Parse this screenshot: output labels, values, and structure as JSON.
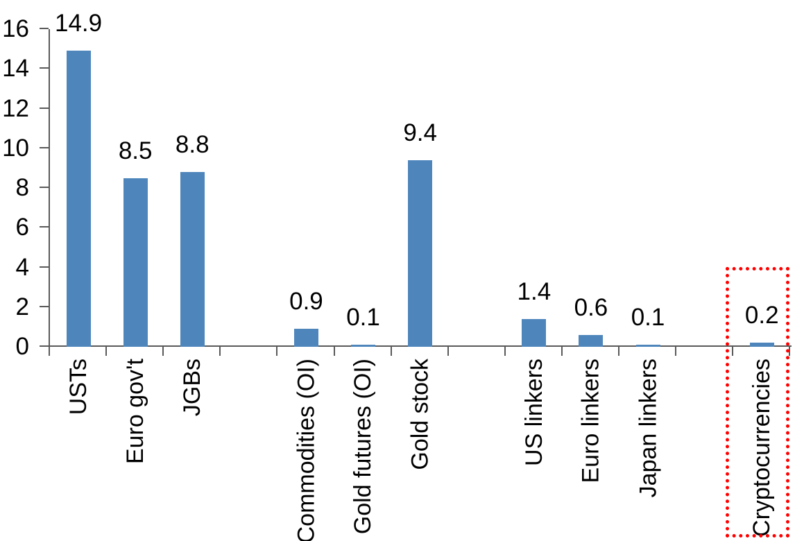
{
  "chart_data": {
    "type": "bar",
    "title": "",
    "xlabel": "",
    "ylabel": "",
    "categories": [
      "USTs",
      "Euro gov't",
      "JGBs",
      "",
      "Commodities (OI)",
      "Gold futures (OI)",
      "Gold stock",
      "",
      "US linkers",
      "Euro linkers",
      "Japan linkers",
      "",
      "Cryptocurrencies"
    ],
    "values": [
      14.9,
      8.5,
      8.8,
      null,
      0.9,
      0.1,
      9.4,
      null,
      1.4,
      0.6,
      0.1,
      null,
      0.2
    ],
    "data_labels": [
      "14.9",
      "8.5",
      "8.8",
      "",
      "0.9",
      "0.1",
      "9.4",
      "",
      "1.4",
      "0.6",
      "0.1",
      "",
      "0.2"
    ],
    "yticks": [
      0,
      2,
      4,
      6,
      8,
      10,
      12,
      14,
      16
    ],
    "ylim": [
      0,
      16
    ],
    "grid": false,
    "legend": false,
    "bar_color": "#4E86BC",
    "axis_color": "#595959",
    "text_color": "#000000",
    "highlight": {
      "target": "Cryptocurrencies",
      "slot": 12,
      "style": "dotted-box",
      "color": "#FF0000"
    }
  }
}
